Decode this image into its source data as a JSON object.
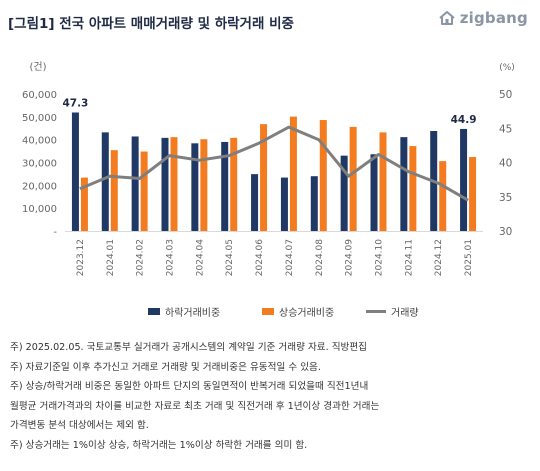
{
  "header": {
    "title": "[그림1] 전국 아파트 매매거래량 및 하락거래 비중",
    "logo_text": "zigbang"
  },
  "chart_data": {
    "type": "bar",
    "categories": [
      "2023.12",
      "2024.01",
      "2024.02",
      "2024.03",
      "2024.04",
      "2024.05",
      "2024.06",
      "2024.07",
      "2024.08",
      "2024.09",
      "2024.10",
      "2024.11",
      "2024.12",
      "2025.01"
    ],
    "series": [
      {
        "name": "하락거래비중",
        "type": "bar",
        "axis": "right",
        "color": "#1f3864",
        "values": [
          47.3,
          44.4,
          43.8,
          43.6,
          42.8,
          43.0,
          38.3,
          37.8,
          38.0,
          41.0,
          41.2,
          43.7,
          44.6,
          44.9
        ]
      },
      {
        "name": "상승거래비중",
        "type": "bar",
        "axis": "right",
        "color": "#f47c20",
        "values": [
          37.8,
          41.8,
          41.6,
          43.7,
          43.4,
          43.6,
          45.6,
          46.7,
          46.2,
          45.2,
          44.4,
          42.4,
          40.2,
          40.8
        ]
      },
      {
        "name": "거래량",
        "type": "line",
        "axis": "left",
        "color": "#7f7f7f",
        "values": [
          18500,
          24000,
          23000,
          33000,
          31000,
          33000,
          38500,
          45500,
          40000,
          24000,
          33500,
          26000,
          21000,
          13500
        ]
      }
    ],
    "y_left": {
      "unit": "(건)",
      "ylim": [
        0,
        60000
      ],
      "ticks": [
        "60,000",
        "50,000",
        "40,000",
        "30,000",
        "20,000",
        "10,000",
        "-"
      ]
    },
    "y_right": {
      "unit": "(%)",
      "ylim": [
        30,
        50
      ],
      "ticks": [
        "50",
        "45",
        "40",
        "35",
        "30"
      ]
    },
    "data_labels": {
      "first": "47.3",
      "last": "44.9"
    },
    "legend": {
      "position": "bottom",
      "items": [
        "하락거래비중",
        "상승거래비중",
        "거래량"
      ]
    },
    "grid": false
  },
  "notes": [
    "주) 2025.02.05. 국토교통부 실거래가 공개시스템의 계약일 기준 거래량  자료. 직방편집",
    "주) 자료기준일 이후 추가신고 거래로 거래량 및 거래비중은 유동적일 수 있음.",
    "주) 상승/하락거래 비중은 동일한 아파트 단지의 동일면적이 반복거래 되었을때 직전1년내",
    "월평균 거래가격과의 차이를 비교한 자료로 최초 거래 및 직전거래 후 1년이상 경과한 거래는",
    "가격변동 분석 대상에서는 제외 함.",
    "주) 상승거래는 1%이상 상승, 하락거래는 1%이상 하락한 거래를 의미 함."
  ]
}
